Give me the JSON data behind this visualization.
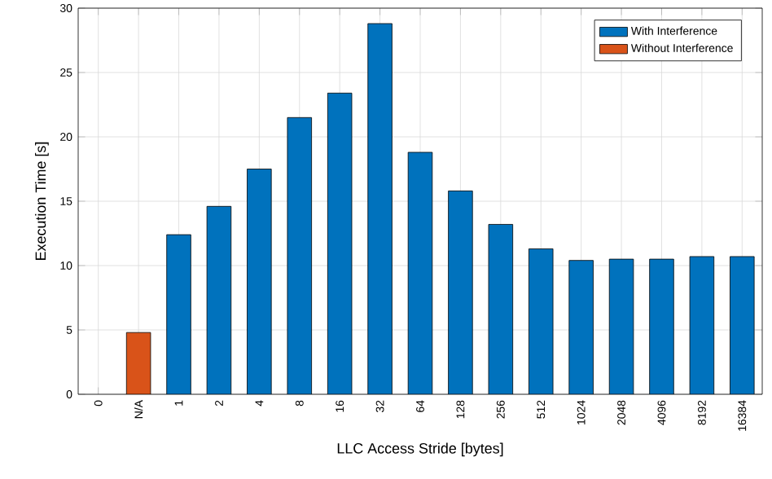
{
  "chart_data": {
    "type": "bar",
    "xlabel": "LLC Access Stride [bytes]",
    "ylabel": "Execution Time [s]",
    "categories": [
      "0",
      "N/A",
      "1",
      "2",
      "4",
      "8",
      "16",
      "32",
      "64",
      "128",
      "256",
      "512",
      "1024",
      "2048",
      "4096",
      "8192",
      "16384"
    ],
    "series": [
      {
        "name": "With Interference",
        "color": "#0072bd",
        "values": [
          null,
          null,
          12.4,
          14.6,
          17.5,
          21.5,
          23.4,
          28.8,
          18.8,
          15.8,
          13.2,
          11.3,
          10.4,
          10.5,
          10.5,
          10.7,
          10.7
        ]
      },
      {
        "name": "Without Interference",
        "color": "#d95319",
        "values": [
          null,
          4.8,
          null,
          null,
          null,
          null,
          null,
          null,
          null,
          null,
          null,
          null,
          null,
          null,
          null,
          null,
          null
        ]
      }
    ],
    "ylim": [
      0,
      30
    ],
    "yticks": [
      0,
      5,
      10,
      15,
      20,
      25,
      30
    ],
    "grid": true,
    "legend": "top right"
  }
}
